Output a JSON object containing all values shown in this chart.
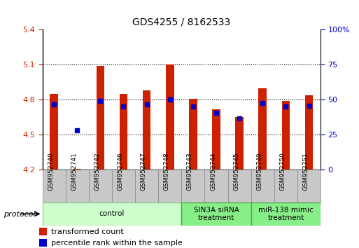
{
  "title": "GDS4255 / 8162533",
  "samples": [
    "GSM952740",
    "GSM952741",
    "GSM952742",
    "GSM952746",
    "GSM952747",
    "GSM952748",
    "GSM952743",
    "GSM952744",
    "GSM952745",
    "GSM952749",
    "GSM952750",
    "GSM952751"
  ],
  "bar_values": [
    4.85,
    4.21,
    5.09,
    4.85,
    4.88,
    5.1,
    4.81,
    4.72,
    4.65,
    4.9,
    4.79,
    4.84
  ],
  "percentile_values": [
    4.76,
    4.54,
    4.79,
    4.74,
    4.76,
    4.8,
    4.74,
    4.69,
    4.64,
    4.77,
    4.74,
    4.75
  ],
  "bar_bottom": 4.2,
  "ylim_left": [
    4.2,
    5.4
  ],
  "ylim_right": [
    0,
    100
  ],
  "yticks_left": [
    4.2,
    4.5,
    4.8,
    5.1,
    5.4
  ],
  "yticks_right": [
    0,
    25,
    50,
    75,
    100
  ],
  "ytick_labels_left": [
    "4.2",
    "4.5",
    "4.8",
    "5.1",
    "5.4"
  ],
  "ytick_labels_right": [
    "0",
    "25",
    "50",
    "75",
    "100%"
  ],
  "grid_yticks": [
    4.5,
    4.8,
    5.1
  ],
  "bar_color": "#cc2200",
  "percentile_color": "#0000cc",
  "groups": [
    {
      "label": "control",
      "start": 0,
      "end": 5,
      "color": "#ccffcc",
      "edge_color": "#88cc88"
    },
    {
      "label": "SIN3A siRNA\ntreatment",
      "start": 6,
      "end": 8,
      "color": "#88ee88",
      "edge_color": "#44aa44"
    },
    {
      "label": "miR-138 mimic\ntreatment",
      "start": 9,
      "end": 11,
      "color": "#88ee88",
      "edge_color": "#44aa44"
    }
  ],
  "protocol_label": "protocol",
  "legend_entries": [
    "transformed count",
    "percentile rank within the sample"
  ],
  "bar_width": 0.35,
  "label_color_left": "#cc2200",
  "label_color_right": "#0000cc",
  "sample_box_color": "#c8c8c8",
  "sample_box_edge": "#888888"
}
